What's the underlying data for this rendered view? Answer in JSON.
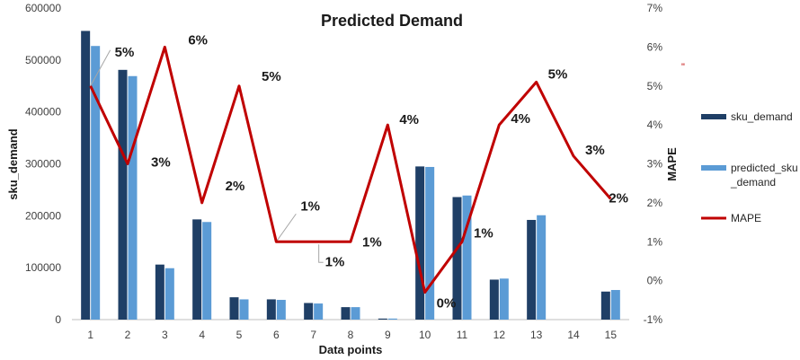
{
  "chart_data": {
    "type": "bar",
    "title": "Predicted Demand",
    "xlabel": "Data points",
    "ylabel": "sku_demand",
    "y2label": "MAPE",
    "categories": [
      "1",
      "2",
      "3",
      "4",
      "5",
      "6",
      "7",
      "8",
      "9",
      "10",
      "11",
      "12",
      "13",
      "14",
      "15"
    ],
    "ylim": [
      0,
      600000
    ],
    "yticks": [
      "0",
      "100000",
      "200000",
      "300000",
      "400000",
      "500000",
      "600000"
    ],
    "y2lim": [
      -1,
      7
    ],
    "y2ticks": [
      "-1%",
      "0%",
      "1%",
      "2%",
      "3%",
      "4%",
      "5%",
      "6%",
      "7%"
    ],
    "series": [
      {
        "name": "sku_demand",
        "type": "bar",
        "axis": "left",
        "color": "#1f3f66",
        "values": [
          556000,
          481000,
          106000,
          193000,
          43000,
          39000,
          32000,
          24000,
          2000,
          295000,
          236000,
          77000,
          192000,
          0,
          54000
        ]
      },
      {
        "name": "predicted_sku_demand",
        "type": "bar",
        "axis": "left",
        "color": "#5b9bd5",
        "values": [
          527000,
          469000,
          99000,
          188000,
          39000,
          38000,
          31000,
          24000,
          2000,
          294000,
          239000,
          79000,
          201000,
          0,
          57000
        ]
      },
      {
        "name": "MAPE",
        "type": "line",
        "axis": "right",
        "color": "#c00000",
        "values": [
          5,
          3,
          6,
          2,
          5,
          1,
          1,
          1,
          4,
          -0.3,
          1,
          4,
          5.1,
          3.2,
          2.1
        ]
      }
    ],
    "data_labels": [
      "5%",
      "3%",
      "6%",
      "2%",
      "5%",
      "1%",
      "1%",
      "1%",
      "4%",
      "0%",
      "1%",
      "4%",
      "5%",
      "3%",
      "2%"
    ],
    "legend": {
      "position": "right",
      "items": [
        {
          "label": "sku_demand",
          "swatch": "bar",
          "color": "#1f3f66"
        },
        {
          "label": "predicted_sku\n_demand",
          "swatch": "bar",
          "color": "#5b9bd5"
        },
        {
          "label": "MAPE",
          "swatch": "line",
          "color": "#c00000"
        }
      ]
    },
    "grid": false
  }
}
